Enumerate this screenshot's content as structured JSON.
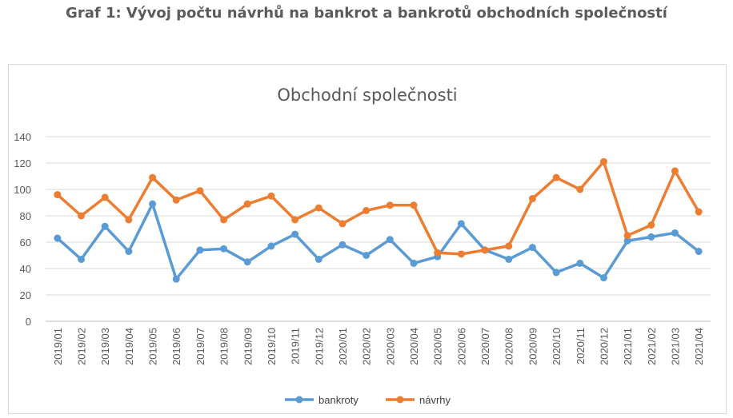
{
  "heading": "Graf 1: Vývoj počtu návrhů na bankrot a bankrotů obchodních společností",
  "chart_data": {
    "type": "line",
    "title": "Obchodní společnosti",
    "xlabel": "",
    "ylabel": "",
    "ylim": [
      0,
      140
    ],
    "yticks": [
      "0",
      "20",
      "40",
      "60",
      "80",
      "100",
      "120",
      "140"
    ],
    "grid": true,
    "legend": "bottom",
    "categories": [
      "2019/01",
      "2019/02",
      "2019/03",
      "2019/04",
      "2019/05",
      "2019/06",
      "2019/07",
      "2019/08",
      "2019/09",
      "2019/10",
      "2019/11",
      "2019/12",
      "2020/01",
      "2020/02",
      "2020/03",
      "2020/04",
      "2020/05",
      "2020/06",
      "2020/07",
      "2020/08",
      "2020/09",
      "2020/10",
      "2020/11",
      "2020/12",
      "2021/01",
      "2021/02",
      "2021/03",
      "2021/04"
    ],
    "series": [
      {
        "name": "bankroty",
        "color": "#5b9bd5",
        "values": [
          63,
          47,
          72,
          53,
          89,
          32,
          54,
          55,
          45,
          57,
          66,
          47,
          58,
          50,
          62,
          44,
          49,
          74,
          54,
          47,
          56,
          37,
          44,
          33,
          61,
          64,
          67,
          53
        ]
      },
      {
        "name": "návrhy",
        "color": "#ed7d31",
        "values": [
          96,
          80,
          94,
          77,
          109,
          92,
          99,
          77,
          89,
          95,
          77,
          86,
          74,
          84,
          88,
          88,
          52,
          51,
          54,
          57,
          93,
          109,
          100,
          121,
          65,
          73,
          114,
          83
        ]
      }
    ]
  }
}
